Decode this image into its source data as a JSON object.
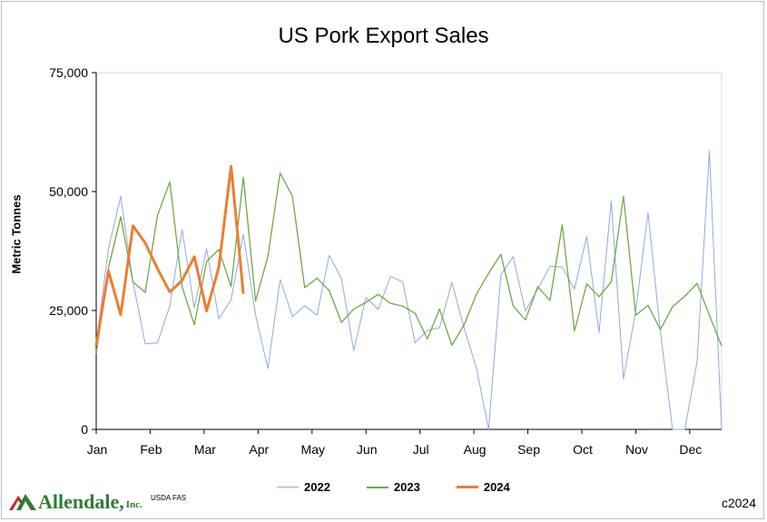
{
  "chart_data": {
    "type": "line",
    "title": "US Pork Export Sales",
    "ylabel": "Metric Tonnes",
    "ylim": [
      0,
      75000
    ],
    "yticks": [
      "0",
      "25,000",
      "50,000",
      "75,000"
    ],
    "ytick_values": [
      0,
      25000,
      50000,
      75000
    ],
    "xlim": [
      1,
      52
    ],
    "month_labels": [
      "Jan",
      "Feb",
      "Mar",
      "Apr",
      "May",
      "Jun",
      "Jul",
      "Aug",
      "Sep",
      "Oct",
      "Nov",
      "Dec"
    ],
    "month_weeks": [
      1,
      5.4,
      9.8,
      14.2,
      18.6,
      23,
      27.4,
      31.8,
      36.2,
      40.6,
      45,
      49.4
    ],
    "grid": false,
    "legend": "bottom",
    "series": [
      {
        "name": "2022",
        "color": "#8faadc",
        "width": 1,
        "x": [
          1,
          2,
          3,
          4,
          5,
          6,
          7,
          8,
          9,
          10,
          11,
          12,
          13,
          14,
          15,
          16,
          17,
          18,
          19,
          20,
          21,
          22,
          23,
          24,
          25,
          26,
          27,
          28,
          29,
          30,
          31,
          32,
          33,
          34,
          35,
          36,
          37,
          38,
          39,
          40,
          41,
          42,
          43,
          44,
          45,
          46,
          47,
          48,
          49,
          50,
          51,
          52
        ],
        "values": [
          18000,
          38000,
          49000,
          31000,
          18000,
          18200,
          26000,
          42000,
          25500,
          38000,
          23200,
          27300,
          41000,
          24000,
          12800,
          31500,
          23700,
          26000,
          24000,
          36600,
          31700,
          16600,
          27700,
          25200,
          32200,
          31000,
          18200,
          20800,
          21400,
          30900,
          21300,
          13000,
          0,
          32500,
          36300,
          24900,
          29500,
          34300,
          34100,
          29500,
          40600,
          20300,
          48000,
          10600,
          24900,
          45600,
          20600,
          0,
          0,
          14300,
          58500,
          0
        ]
      },
      {
        "name": "2023",
        "color": "#70a845",
        "width": 1.3,
        "x": [
          1,
          2,
          3,
          4,
          5,
          6,
          7,
          8,
          9,
          10,
          11,
          12,
          13,
          14,
          15,
          16,
          17,
          18,
          19,
          20,
          21,
          22,
          23,
          24,
          25,
          26,
          27,
          28,
          29,
          30,
          31,
          32,
          33,
          34,
          35,
          36,
          37,
          38,
          39,
          40,
          41,
          42,
          43,
          44,
          45,
          46,
          47,
          48,
          49,
          50,
          51,
          52
        ],
        "values": [
          16000,
          34000,
          44700,
          31000,
          28800,
          45000,
          52000,
          30000,
          22000,
          35300,
          37800,
          30000,
          53000,
          27000,
          36300,
          53900,
          49000,
          29800,
          31800,
          29200,
          22500,
          25300,
          26700,
          28400,
          26500,
          25900,
          24400,
          19000,
          25300,
          17700,
          22000,
          28400,
          32800,
          36800,
          26000,
          23000,
          30000,
          27100,
          43000,
          20700,
          30600,
          27900,
          31000,
          49000,
          24000,
          26100,
          21000,
          25800,
          28000,
          30700,
          24000,
          17500
        ]
      },
      {
        "name": "2024",
        "color": "#ed7d31",
        "width": 3,
        "x": [
          1,
          2,
          3,
          4,
          5,
          6,
          7,
          8,
          9,
          10,
          11,
          12,
          13
        ],
        "values": [
          17600,
          33300,
          24100,
          42800,
          39200,
          33800,
          28900,
          31300,
          36300,
          24900,
          34100,
          55300,
          28500
        ]
      }
    ]
  },
  "source_note": "USDA FAS",
  "brand": {
    "name": "Allendale,",
    "suffix": "Inc."
  },
  "copyright": "c2024"
}
